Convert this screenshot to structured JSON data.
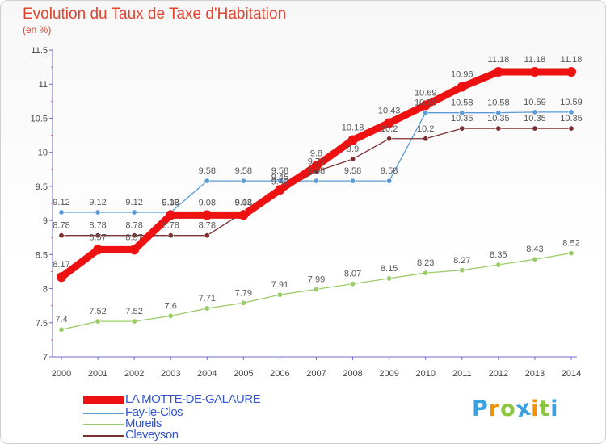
{
  "title": "Evolution du Taux de Taxe d'Habitation",
  "subtitle": "(en %)",
  "chart_data": {
    "type": "line",
    "title": "Evolution du Taux de Taxe d'Habitation",
    "subtitle": "(en %)",
    "x": [
      2000,
      2001,
      2002,
      2003,
      2004,
      2005,
      2006,
      2007,
      2008,
      2009,
      2010,
      2011,
      2012,
      2013,
      2014
    ],
    "x_tick_labels": [
      "2000",
      "2001",
      "2002",
      "2003",
      "2004",
      "2005",
      "2006",
      "2007",
      "2008",
      "2009",
      "2010",
      "2011",
      "2012",
      "2013",
      "2014"
    ],
    "ylim": [
      7,
      11.5
    ],
    "y_ticks": [
      7,
      7.5,
      8,
      8.5,
      9,
      9.5,
      10,
      10.5,
      11,
      11.5
    ],
    "y_tick_labels": [
      "7",
      "7.5",
      "8",
      "8.5",
      "9",
      "9.5",
      "10",
      "10.5",
      "11",
      "11.5"
    ],
    "grid": false,
    "legend_position": "bottom-left",
    "series": [
      {
        "name": "LA MOTTE-DE-GALAURE",
        "color": "#ee1111",
        "values": [
          8.17,
          8.57,
          8.57,
          9.08,
          9.08,
          9.08,
          9.45,
          9.8,
          10.18,
          10.43,
          10.69,
          10.96,
          11.18,
          11.18,
          11.18
        ],
        "labels": [
          "8.17",
          "8.57",
          "8.57",
          "9.08",
          "9.08",
          "9.08",
          "9.45",
          "9.8",
          "10.18",
          "10.43",
          "10.69",
          "10.96",
          "11.18",
          "11.18",
          "11.18"
        ]
      },
      {
        "name": "Fay-le-Clos",
        "color": "#5b9bd5",
        "values": [
          9.12,
          9.12,
          9.12,
          9.12,
          9.58,
          9.58,
          9.58,
          9.58,
          9.58,
          9.58,
          10.58,
          10.58,
          10.58,
          10.59,
          10.59
        ],
        "labels": [
          "9.12",
          "9.12",
          "9.12",
          "9.12",
          "9.58",
          "9.58",
          "9.58",
          "9.58",
          "9.58",
          "9.58",
          "10.58",
          "10.58",
          "10.58",
          "10.59",
          "10.59"
        ]
      },
      {
        "name": "Mureils",
        "color": "#99cc66",
        "values": [
          7.4,
          7.52,
          7.52,
          7.6,
          7.71,
          7.79,
          7.91,
          7.99,
          8.07,
          8.15,
          8.23,
          8.27,
          8.35,
          8.43,
          8.52
        ],
        "labels": [
          "7.4",
          "7.52",
          "7.52",
          "7.6",
          "7.71",
          "7.79",
          "7.91",
          "7.99",
          "8.07",
          "8.15",
          "8.23",
          "8.27",
          "8.35",
          "8.43",
          "8.52"
        ]
      },
      {
        "name": "Claveyson",
        "color": "#7a3030",
        "values": [
          8.78,
          8.78,
          8.78,
          8.78,
          8.78,
          9.12,
          9.42,
          9.72,
          9.9,
          10.2,
          10.2,
          10.35,
          10.35,
          10.35,
          10.35
        ],
        "labels": [
          "8.78",
          "8.78",
          "8.78",
          "8.78",
          "8.78",
          "9.12",
          "9.42",
          "9.72",
          "9.9",
          "10.2",
          "10.2",
          "10.35",
          "10.35",
          "10.35",
          "10.35"
        ]
      }
    ]
  },
  "logo": {
    "letters": [
      "P",
      "r",
      "o",
      "x",
      "i",
      "t",
      "i"
    ],
    "colors": [
      "#3aa0e0",
      "#f29400",
      "#8cc63f",
      "#3aa0e0",
      "#f29400",
      "#8cc63f",
      "#3aa0e0"
    ]
  }
}
